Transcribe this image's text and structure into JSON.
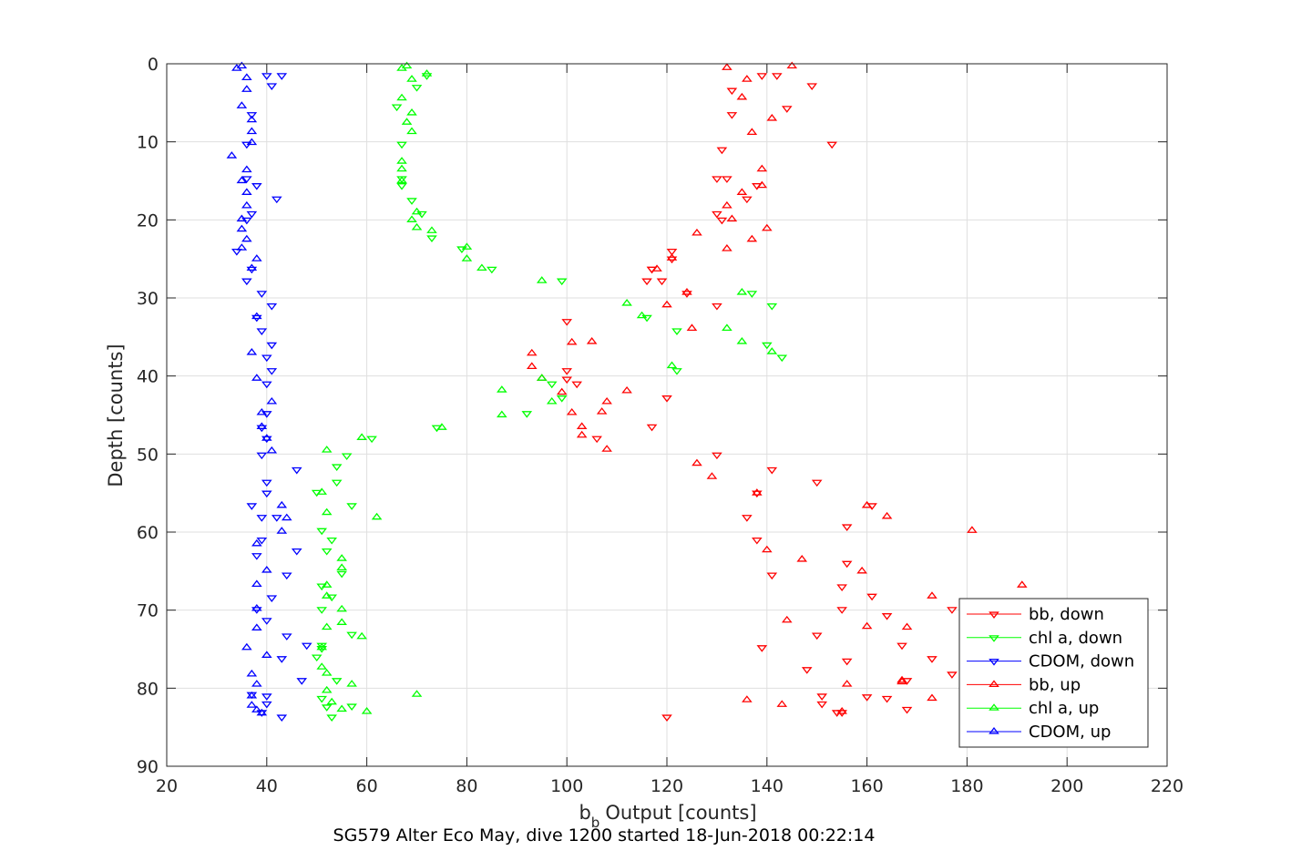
{
  "caption": "SG579 Alter Eco May, dive 1200 started 18-Jun-2018 00:22:14",
  "chart_data": {
    "type": "scatter",
    "xlabel": "Output [counts]",
    "xlabel_prefix": "b",
    "xlabel_sub": "b",
    "ylabel": "Depth [counts]",
    "xlim": [
      20,
      220
    ],
    "ylim": [
      0,
      90
    ],
    "y_reversed": true,
    "grid": true,
    "legend_position": "lower-right",
    "x_ticks": [
      20,
      40,
      60,
      80,
      100,
      120,
      140,
      160,
      180,
      200,
      220
    ],
    "y_ticks": [
      0,
      10,
      20,
      30,
      40,
      50,
      60,
      70,
      80,
      90
    ],
    "series": [
      {
        "name": "bb, down",
        "color": "#ff0000",
        "marker": "triangle-down",
        "points": [
          [
            139,
            1.5
          ],
          [
            142,
            1.5
          ],
          [
            149,
            2.8
          ],
          [
            133,
            3.4
          ],
          [
            144,
            5.7
          ],
          [
            133,
            6.5
          ],
          [
            153,
            10.3
          ],
          [
            131,
            11
          ],
          [
            132,
            14.7
          ],
          [
            130,
            14.7
          ],
          [
            138,
            15.6
          ],
          [
            136,
            17.3
          ],
          [
            130,
            19.2
          ],
          [
            131,
            20
          ],
          [
            121,
            24
          ],
          [
            121,
            25
          ],
          [
            117,
            26.3
          ],
          [
            117,
            26.3
          ],
          [
            116,
            27.8
          ],
          [
            119,
            27.8
          ],
          [
            124,
            29.4
          ],
          [
            130,
            31
          ],
          [
            100,
            33
          ],
          [
            100,
            39.3
          ],
          [
            100,
            40.4
          ],
          [
            102,
            41
          ],
          [
            120,
            42.8
          ],
          [
            117,
            46.5
          ],
          [
            106,
            48
          ],
          [
            130,
            50.1
          ],
          [
            141,
            52
          ],
          [
            150,
            53.6
          ],
          [
            138,
            55
          ],
          [
            136,
            58.1
          ],
          [
            161,
            56.6
          ],
          [
            138,
            61
          ],
          [
            141,
            65.5
          ],
          [
            156,
            59.3
          ],
          [
            156,
            64
          ],
          [
            155,
            67
          ],
          [
            155,
            69.9
          ],
          [
            161,
            68.2
          ],
          [
            164,
            70.7
          ],
          [
            177,
            69.9
          ],
          [
            167,
            74.5
          ],
          [
            173,
            76.2
          ],
          [
            150,
            73.2
          ],
          [
            156,
            76.5
          ],
          [
            177,
            78.2
          ],
          [
            168,
            79
          ],
          [
            160,
            81.1
          ],
          [
            164,
            81.3
          ],
          [
            151,
            81
          ],
          [
            151,
            82
          ],
          [
            154,
            83.1
          ],
          [
            168,
            82.7
          ],
          [
            155,
            83.1
          ],
          [
            139,
            74.8
          ],
          [
            148,
            77.6
          ],
          [
            120,
            83.7
          ]
        ]
      },
      {
        "name": "chl a, down",
        "color": "#00ff00",
        "marker": "triangle-down",
        "points": [
          [
            72,
            1.5
          ],
          [
            70,
            3
          ],
          [
            66,
            5.5
          ],
          [
            67,
            10.3
          ],
          [
            67,
            14.7
          ],
          [
            67,
            15.6
          ],
          [
            69,
            17.5
          ],
          [
            71,
            19.2
          ],
          [
            73,
            22.3
          ],
          [
            79,
            23.7
          ],
          [
            85,
            26.3
          ],
          [
            99,
            27.8
          ],
          [
            116,
            32.5
          ],
          [
            122,
            34.2
          ],
          [
            122,
            39.3
          ],
          [
            140,
            36
          ],
          [
            137,
            29.4
          ],
          [
            141,
            31
          ],
          [
            143,
            37.6
          ],
          [
            99,
            42.8
          ],
          [
            97,
            41
          ],
          [
            92,
            44.8
          ],
          [
            74,
            46.6
          ],
          [
            61,
            48
          ],
          [
            56,
            50.2
          ],
          [
            54,
            51.6
          ],
          [
            54,
            53.6
          ],
          [
            50,
            54.9
          ],
          [
            57,
            56.6
          ],
          [
            51,
            59.8
          ],
          [
            53,
            61
          ],
          [
            52,
            62.4
          ],
          [
            55,
            65.3
          ],
          [
            51,
            66.9
          ],
          [
            53,
            68.3
          ],
          [
            51,
            69.9
          ],
          [
            57,
            73.1
          ],
          [
            51,
            74.5
          ],
          [
            50,
            76
          ],
          [
            54,
            79
          ],
          [
            51,
            81.3
          ],
          [
            52,
            82.4
          ],
          [
            57,
            82.3
          ],
          [
            53,
            83.7
          ],
          [
            51,
            74.9
          ]
        ]
      },
      {
        "name": "CDOM, down",
        "color": "#0000ff",
        "marker": "triangle-down",
        "points": [
          [
            43,
            1.5
          ],
          [
            40,
            1.5
          ],
          [
            41,
            2.8
          ],
          [
            37,
            6.5
          ],
          [
            36,
            10.3
          ],
          [
            36,
            14.7
          ],
          [
            38,
            15.6
          ],
          [
            42,
            17.3
          ],
          [
            37,
            19.2
          ],
          [
            36,
            20
          ],
          [
            34,
            24
          ],
          [
            37,
            26.3
          ],
          [
            36,
            27.8
          ],
          [
            39,
            29.4
          ],
          [
            41,
            31
          ],
          [
            38,
            32.5
          ],
          [
            39,
            34.2
          ],
          [
            41,
            36
          ],
          [
            40,
            37.6
          ],
          [
            41,
            39.3
          ],
          [
            40,
            41
          ],
          [
            40,
            44.8
          ],
          [
            39,
            46.6
          ],
          [
            40,
            48
          ],
          [
            39,
            50.1
          ],
          [
            46,
            52
          ],
          [
            40,
            53.6
          ],
          [
            40,
            55
          ],
          [
            37,
            56.6
          ],
          [
            42,
            58.1
          ],
          [
            39,
            58.1
          ],
          [
            39,
            61
          ],
          [
            46,
            62.4
          ],
          [
            38,
            63
          ],
          [
            44,
            65.5
          ],
          [
            41,
            68.4
          ],
          [
            38,
            69.9
          ],
          [
            40,
            71.3
          ],
          [
            44,
            73.3
          ],
          [
            43,
            76.2
          ],
          [
            48,
            74.5
          ],
          [
            47,
            79
          ],
          [
            40,
            81
          ],
          [
            40,
            82
          ],
          [
            39,
            83.1
          ],
          [
            43,
            83.7
          ],
          [
            37,
            80.8
          ]
        ]
      },
      {
        "name": "bb, up",
        "color": "#ff0000",
        "marker": "triangle-up",
        "points": [
          [
            132,
            0.5
          ],
          [
            145,
            0.3
          ],
          [
            136,
            2
          ],
          [
            135,
            4.3
          ],
          [
            141,
            7
          ],
          [
            137,
            8.8
          ],
          [
            139,
            13.5
          ],
          [
            139,
            15.6
          ],
          [
            135,
            16.5
          ],
          [
            132,
            18.2
          ],
          [
            133,
            19.9
          ],
          [
            140,
            21.1
          ],
          [
            126,
            21.7
          ],
          [
            132,
            23.7
          ],
          [
            137,
            22.5
          ],
          [
            121,
            24.9
          ],
          [
            118,
            26.3
          ],
          [
            120,
            30.9
          ],
          [
            125,
            33.9
          ],
          [
            124,
            29.3
          ],
          [
            93,
            37.1
          ],
          [
            93,
            38.8
          ],
          [
            95,
            40.3
          ],
          [
            99,
            42.1
          ],
          [
            103,
            46.5
          ],
          [
            103,
            47.6
          ],
          [
            108,
            43.3
          ],
          [
            107,
            44.6
          ],
          [
            105,
            35.6
          ],
          [
            108,
            49.4
          ],
          [
            101,
            44.7
          ],
          [
            112,
            41.9
          ],
          [
            101,
            35.7
          ],
          [
            126,
            51.2
          ],
          [
            129,
            52.9
          ],
          [
            138,
            55
          ],
          [
            140,
            62.3
          ],
          [
            147,
            63.5
          ],
          [
            159,
            65
          ],
          [
            160,
            56.6
          ],
          [
            164,
            58
          ],
          [
            181,
            59.8
          ],
          [
            191,
            66.8
          ],
          [
            173,
            68.2
          ],
          [
            168,
            72.2
          ],
          [
            144,
            71.3
          ],
          [
            167,
            79
          ],
          [
            156,
            79.5
          ],
          [
            173,
            81.3
          ],
          [
            143,
            82.1
          ],
          [
            155,
            83
          ],
          [
            136,
            81.5
          ],
          [
            167,
            79.2
          ],
          [
            160,
            72.1
          ]
        ]
      },
      {
        "name": "chl a, up",
        "color": "#00ff00",
        "marker": "triangle-up",
        "points": [
          [
            68,
            0.3
          ],
          [
            67,
            0.6
          ],
          [
            72,
            1.3
          ],
          [
            69,
            2
          ],
          [
            67,
            4.4
          ],
          [
            69,
            6.3
          ],
          [
            68,
            7.5
          ],
          [
            69,
            8.7
          ],
          [
            67,
            12.5
          ],
          [
            67,
            13.5
          ],
          [
            67,
            15
          ],
          [
            70,
            19
          ],
          [
            69,
            20
          ],
          [
            70,
            21
          ],
          [
            73,
            21.4
          ],
          [
            80,
            23.5
          ],
          [
            80,
            25
          ],
          [
            83,
            26.2
          ],
          [
            95,
            27.8
          ],
          [
            112,
            30.7
          ],
          [
            115,
            32.3
          ],
          [
            132,
            33.9
          ],
          [
            135,
            35.6
          ],
          [
            135,
            29.3
          ],
          [
            141,
            36.9
          ],
          [
            121,
            38.7
          ],
          [
            95,
            40.3
          ],
          [
            97,
            43.3
          ],
          [
            87,
            41.8
          ],
          [
            87,
            45
          ],
          [
            75,
            46.6
          ],
          [
            59,
            47.9
          ],
          [
            52,
            49.5
          ],
          [
            51,
            54.9
          ],
          [
            52,
            57.5
          ],
          [
            62,
            58.1
          ],
          [
            55,
            63.4
          ],
          [
            55,
            64.6
          ],
          [
            52,
            66.8
          ],
          [
            52,
            68.2
          ],
          [
            55,
            69.9
          ],
          [
            55,
            71.6
          ],
          [
            59,
            73.4
          ],
          [
            52,
            72.2
          ],
          [
            51,
            74.8
          ],
          [
            51,
            77.3
          ],
          [
            52,
            78.1
          ],
          [
            57,
            79.5
          ],
          [
            52,
            80.3
          ],
          [
            53,
            81.8
          ],
          [
            55,
            82.7
          ],
          [
            60,
            83
          ],
          [
            70,
            80.8
          ]
        ]
      },
      {
        "name": "CDOM, up",
        "color": "#0000ff",
        "marker": "triangle-up",
        "points": [
          [
            35,
            0.3
          ],
          [
            34,
            0.6
          ],
          [
            36,
            1.8
          ],
          [
            36,
            3.3
          ],
          [
            35,
            5.4
          ],
          [
            37,
            7.2
          ],
          [
            37,
            8.7
          ],
          [
            37,
            10.1
          ],
          [
            33,
            11.8
          ],
          [
            36,
            13.6
          ],
          [
            35,
            15
          ],
          [
            36,
            16.5
          ],
          [
            36,
            18.2
          ],
          [
            35,
            19.9
          ],
          [
            35,
            21.2
          ],
          [
            36,
            22.5
          ],
          [
            35,
            23.6
          ],
          [
            37,
            26.2
          ],
          [
            38,
            25
          ],
          [
            38,
            32.4
          ],
          [
            37,
            37
          ],
          [
            38,
            40.3
          ],
          [
            41,
            43.3
          ],
          [
            39,
            44.7
          ],
          [
            39,
            46.5
          ],
          [
            40,
            48
          ],
          [
            41,
            49.6
          ],
          [
            43,
            56.6
          ],
          [
            44,
            58.2
          ],
          [
            43,
            59.9
          ],
          [
            38,
            61.5
          ],
          [
            40,
            64.9
          ],
          [
            38,
            66.7
          ],
          [
            38,
            69.8
          ],
          [
            38,
            72.3
          ],
          [
            36,
            74.8
          ],
          [
            40,
            75.8
          ],
          [
            37,
            78.2
          ],
          [
            38,
            79.5
          ],
          [
            37,
            81
          ],
          [
            37,
            82.2
          ],
          [
            38,
            82.8
          ],
          [
            39,
            83.2
          ]
        ]
      }
    ]
  }
}
